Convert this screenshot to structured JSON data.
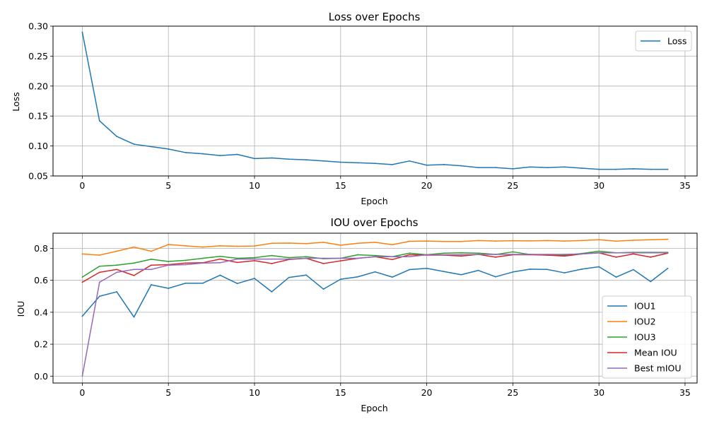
{
  "chart_data": [
    {
      "type": "line",
      "title": "Loss over Epochs",
      "xlabel": "Epoch",
      "ylabel": "Loss",
      "xlim": [
        -1.7,
        35.7
      ],
      "ylim": [
        0.05,
        0.3
      ],
      "xticks": [
        0,
        5,
        10,
        15,
        20,
        25,
        30,
        35
      ],
      "yticks": [
        0.05,
        0.1,
        0.15,
        0.2,
        0.25,
        0.3
      ],
      "ytick_labels": [
        "0.05",
        "0.10",
        "0.15",
        "0.20",
        "0.25",
        "0.30"
      ],
      "grid": true,
      "legend_position": "top-right",
      "x": [
        0,
        1,
        2,
        3,
        4,
        5,
        6,
        7,
        8,
        9,
        10,
        11,
        12,
        13,
        14,
        15,
        16,
        17,
        18,
        19,
        20,
        21,
        22,
        23,
        24,
        25,
        26,
        27,
        28,
        29,
        30,
        31,
        32,
        33,
        34
      ],
      "series": [
        {
          "name": "Loss",
          "color": "#1f77b4",
          "values": [
            0.29,
            0.142,
            0.116,
            0.103,
            0.099,
            0.095,
            0.089,
            0.087,
            0.084,
            0.086,
            0.079,
            0.08,
            0.078,
            0.077,
            0.075,
            0.073,
            0.072,
            0.071,
            0.069,
            0.075,
            0.068,
            0.069,
            0.067,
            0.064,
            0.064,
            0.062,
            0.065,
            0.064,
            0.065,
            0.063,
            0.061,
            0.061,
            0.062,
            0.061,
            0.061
          ]
        }
      ]
    },
    {
      "type": "line",
      "title": "IOU over Epochs",
      "xlabel": "Epoch",
      "ylabel": "IOU",
      "xlim": [
        -1.7,
        35.7
      ],
      "ylim": [
        -0.043,
        0.895
      ],
      "xticks": [
        0,
        5,
        10,
        15,
        20,
        25,
        30,
        35
      ],
      "yticks": [
        0.0,
        0.2,
        0.4,
        0.6,
        0.8
      ],
      "ytick_labels": [
        "0.0",
        "0.2",
        "0.4",
        "0.6",
        "0.8"
      ],
      "grid": true,
      "legend_position": "bottom-right",
      "x": [
        0,
        1,
        2,
        3,
        4,
        5,
        6,
        7,
        8,
        9,
        10,
        11,
        12,
        13,
        14,
        15,
        16,
        17,
        18,
        19,
        20,
        21,
        22,
        23,
        24,
        25,
        26,
        27,
        28,
        29,
        30,
        31,
        32,
        33,
        34
      ],
      "series": [
        {
          "name": "IOU1",
          "color": "#1f77b4",
          "values": [
            0.375,
            0.5,
            0.528,
            0.37,
            0.572,
            0.55,
            0.582,
            0.582,
            0.632,
            0.58,
            0.612,
            0.528,
            0.618,
            0.633,
            0.545,
            0.607,
            0.622,
            0.653,
            0.62,
            0.667,
            0.675,
            0.655,
            0.635,
            0.662,
            0.622,
            0.652,
            0.67,
            0.668,
            0.647,
            0.67,
            0.685,
            0.62,
            0.667,
            0.592,
            0.675
          ]
        },
        {
          "name": "IOU2",
          "color": "#ff7f0e",
          "values": [
            0.765,
            0.758,
            0.782,
            0.808,
            0.782,
            0.824,
            0.816,
            0.808,
            0.816,
            0.813,
            0.815,
            0.832,
            0.833,
            0.83,
            0.838,
            0.82,
            0.832,
            0.838,
            0.823,
            0.844,
            0.846,
            0.843,
            0.843,
            0.849,
            0.846,
            0.848,
            0.847,
            0.849,
            0.846,
            0.849,
            0.854,
            0.845,
            0.851,
            0.854,
            0.857
          ]
        },
        {
          "name": "IOU3",
          "color": "#2ca02c",
          "values": [
            0.62,
            0.688,
            0.695,
            0.708,
            0.732,
            0.718,
            0.725,
            0.738,
            0.75,
            0.738,
            0.742,
            0.755,
            0.742,
            0.748,
            0.735,
            0.738,
            0.76,
            0.755,
            0.748,
            0.77,
            0.76,
            0.77,
            0.772,
            0.77,
            0.762,
            0.778,
            0.762,
            0.758,
            0.758,
            0.768,
            0.782,
            0.772,
            0.775,
            0.775,
            0.775
          ]
        },
        {
          "name": "Mean IOU",
          "color": "#d62728",
          "values": [
            0.588,
            0.65,
            0.668,
            0.63,
            0.695,
            0.698,
            0.708,
            0.71,
            0.733,
            0.712,
            0.723,
            0.705,
            0.73,
            0.738,
            0.705,
            0.722,
            0.738,
            0.748,
            0.73,
            0.76,
            0.758,
            0.758,
            0.752,
            0.762,
            0.745,
            0.76,
            0.76,
            0.758,
            0.752,
            0.765,
            0.772,
            0.745,
            0.765,
            0.745,
            0.77
          ]
        },
        {
          "name": "Best mIOU",
          "color": "#9467bd",
          "values": [
            0.0,
            0.588,
            0.65,
            0.668,
            0.668,
            0.695,
            0.698,
            0.708,
            0.71,
            0.733,
            0.733,
            0.733,
            0.733,
            0.738,
            0.738,
            0.738,
            0.738,
            0.748,
            0.748,
            0.748,
            0.76,
            0.76,
            0.76,
            0.762,
            0.762,
            0.762,
            0.762,
            0.762,
            0.762,
            0.765,
            0.772,
            0.772,
            0.772,
            0.772,
            0.772
          ]
        }
      ]
    }
  ]
}
